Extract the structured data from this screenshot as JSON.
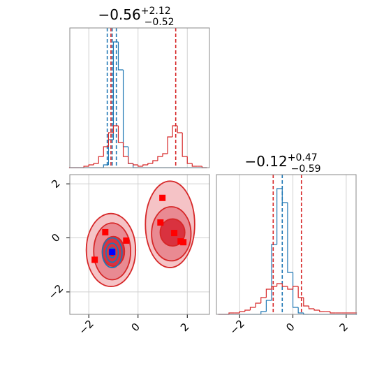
{
  "chart_data": [
    {
      "type": "histogram",
      "title": "−0.56",
      "title_upper": "+2.12",
      "title_lower": "−0.52",
      "bins": [
        -2.8,
        -2.6,
        -2.4,
        -2.2,
        -2.0,
        -1.8,
        -1.6,
        -1.4,
        -1.2,
        -1.0,
        -0.8,
        -0.6,
        -0.4,
        -0.2,
        0.0,
        0.2,
        0.4,
        0.6,
        0.8,
        1.0,
        1.2,
        1.4,
        1.6,
        1.8,
        2.0,
        2.2,
        2.4,
        2.6,
        2.8
      ],
      "series": [
        {
          "color": "#1f77b4",
          "values": [
            0,
            0,
            0,
            0,
            0,
            0,
            0,
            2,
            20,
            90,
            70,
            15,
            3,
            0,
            0,
            0,
            0,
            0,
            0,
            0,
            0,
            0,
            0,
            0,
            0,
            0,
            0,
            0
          ],
          "quantiles": [
            -1.25,
            -1.05,
            -0.88
          ]
        },
        {
          "color": "#d62728",
          "values": [
            0,
            0,
            0,
            1,
            2,
            3,
            8,
            15,
            25,
            30,
            18,
            8,
            3,
            2,
            1,
            2,
            3,
            5,
            8,
            10,
            22,
            30,
            25,
            8,
            3,
            1,
            1,
            0
          ],
          "quantiles": [
            -1.1,
            1.53
          ]
        }
      ],
      "xlim": [
        -2.77,
        2.9
      ],
      "ylim": [
        0,
        100
      ],
      "xgrid": [
        -2,
        0,
        2
      ]
    },
    {
      "type": "contour",
      "xlim": [
        -2.77,
        2.9
      ],
      "ylim": [
        -2.83,
        2.34
      ],
      "xticks": [
        {
          "value": -2,
          "label": "−2"
        },
        0,
        2
      ],
      "yticks": [
        {
          "value": -2,
          "label": "−2"
        },
        0,
        2
      ],
      "series": [
        {
          "color": "#d62728",
          "blobs": [
            {
              "x": -1.1,
              "y": -0.45,
              "rx": 1.0,
              "ry": 1.35,
              "fill": "#f5c3c6"
            },
            {
              "x": 1.3,
              "y": 0.5,
              "rx": 1.0,
              "ry": 1.6,
              "fill": "#f5c3c6"
            },
            {
              "x": -1.05,
              "y": -0.5,
              "rx": 0.75,
              "ry": 1.05,
              "fill": "#e98a92"
            },
            {
              "x": 1.35,
              "y": 0.15,
              "rx": 0.8,
              "ry": 1.0,
              "fill": "#e98a92"
            },
            {
              "x": -1.0,
              "y": -0.5,
              "rx": 0.45,
              "ry": 0.55,
              "fill": "#d9323f"
            },
            {
              "x": 1.4,
              "y": 0.2,
              "rx": 0.5,
              "ry": 0.5,
              "fill": "#d9323f"
            }
          ],
          "points": {
            "color": "#ff0000",
            "x": [
              -1.33,
              -0.48,
              -1.76,
              0.99,
              0.91,
              1.47,
              1.73,
              1.84,
              -1.05
            ],
            "y": [
              0.21,
              -0.1,
              -0.81,
              1.48,
              0.57,
              0.18,
              -0.13,
              -0.16,
              -0.55
            ]
          }
        },
        {
          "color": "#1f77b4",
          "blobs": [
            {
              "x": -1.05,
              "y": -0.55,
              "rx": 0.4,
              "ry": 0.55,
              "fill": "none"
            },
            {
              "x": -1.05,
              "y": -0.55,
              "rx": 0.25,
              "ry": 0.35,
              "fill": "none"
            },
            {
              "x": -1.05,
              "y": -0.55,
              "rx": 0.12,
              "ry": 0.18,
              "fill": "none"
            }
          ],
          "points": {
            "color": "#0000ff",
            "x": [
              -1.05
            ],
            "y": [
              -0.52
            ]
          }
        }
      ],
      "grid": true
    },
    {
      "type": "histogram",
      "title": "−0.12",
      "title_upper": "+0.47",
      "title_lower": "−0.59",
      "bins": [
        -2.8,
        -2.6,
        -2.4,
        -2.2,
        -2.0,
        -1.8,
        -1.6,
        -1.4,
        -1.2,
        -1.0,
        -0.8,
        -0.6,
        -0.4,
        -0.2,
        0.0,
        0.2,
        0.4,
        0.6,
        0.8,
        1.0,
        1.2,
        1.4,
        1.6,
        1.8,
        2.0,
        2.2,
        2.4
      ],
      "series": [
        {
          "color": "#1f77b4",
          "values": [
            0,
            0,
            0,
            0,
            0,
            0,
            0,
            0,
            2,
            10,
            50,
            90,
            80,
            30,
            5,
            1,
            0,
            0,
            0,
            0,
            0,
            0,
            0,
            0,
            0,
            0
          ],
          "quantiles": [
            -0.4
          ]
        },
        {
          "color": "#d62728",
          "values": [
            0,
            0,
            1,
            1,
            2,
            3,
            5,
            8,
            12,
            18,
            20,
            22,
            20,
            18,
            20,
            12,
            6,
            4,
            3,
            2,
            2,
            1,
            1,
            1,
            1,
            1
          ],
          "quantiles": [
            -0.74,
            0.32
          ]
        }
      ],
      "xlim": [
        -2.87,
        2.37
      ],
      "ylim": [
        0,
        100
      ],
      "xticks": [
        {
          "value": -2,
          "label": "−2"
        },
        0,
        2
      ],
      "xgrid": [
        -2,
        0,
        2
      ]
    }
  ]
}
